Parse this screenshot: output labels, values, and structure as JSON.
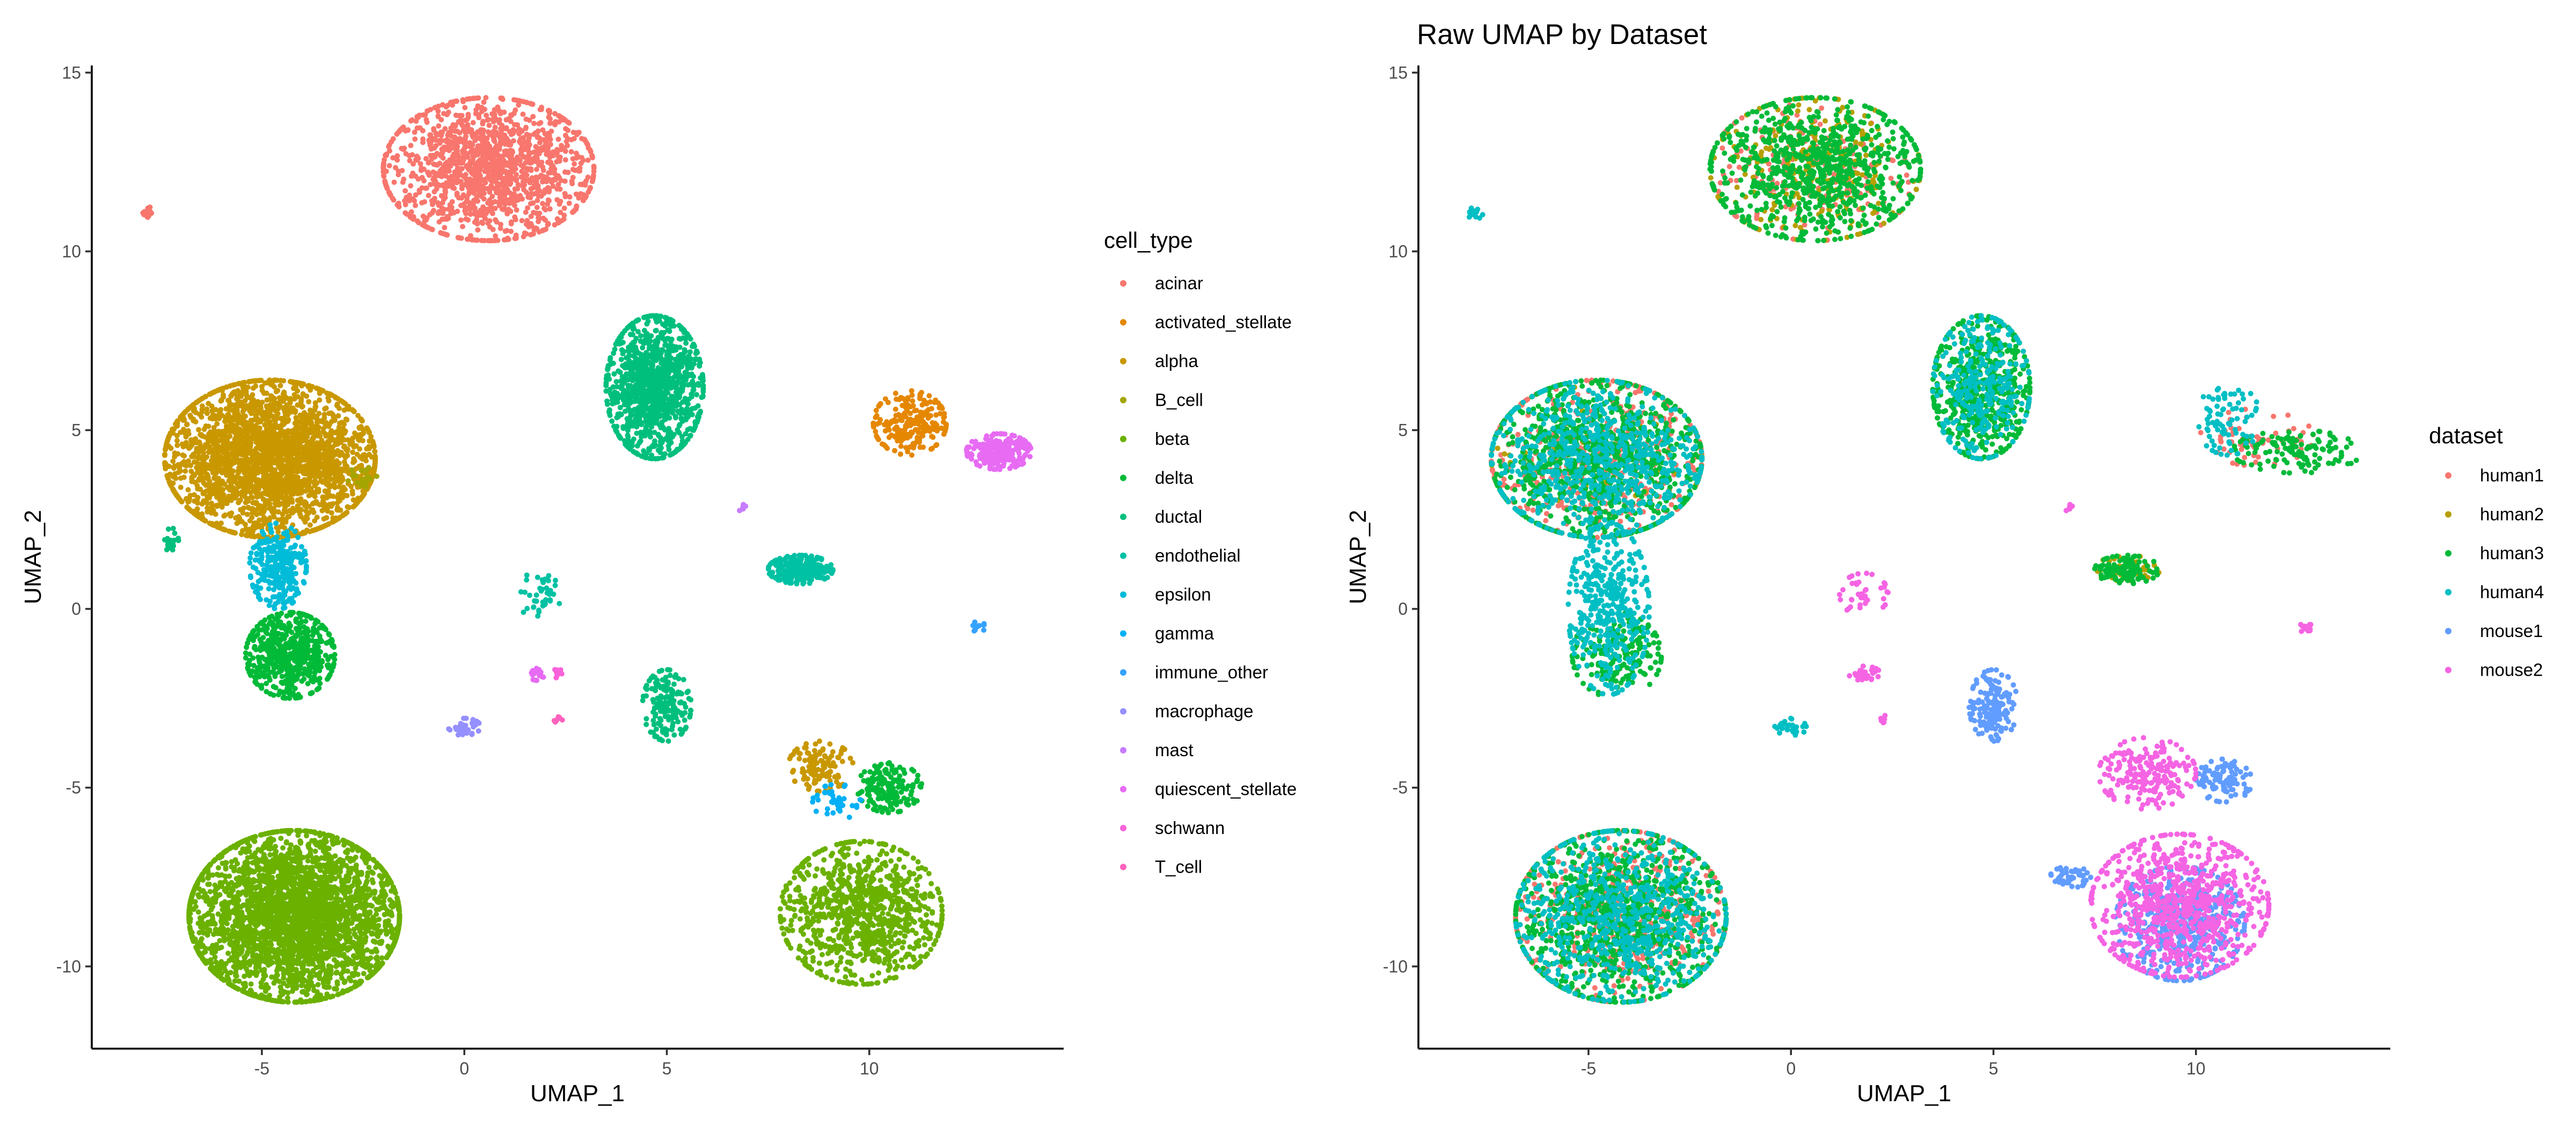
{
  "chart_data": [
    {
      "type": "scatter",
      "title": "",
      "xlabel": "UMAP_1",
      "ylabel": "UMAP_2",
      "xlim": [
        -9.2,
        14.8
      ],
      "ylim": [
        -12.3,
        15.2
      ],
      "xticks": [
        -5,
        0,
        5,
        10
      ],
      "yticks": [
        -10,
        -5,
        0,
        5,
        10,
        15
      ],
      "grid": false,
      "legend": {
        "title": "cell_type",
        "position": "right"
      },
      "series": [
        {
          "name": "acinar",
          "color": "#F8766D",
          "clusters": [
            {
              "cx": 0.6,
              "cy": 12.3,
              "sx": 1.3,
              "sy": 1.0,
              "n": 1400
            },
            {
              "cx": -7.8,
              "cy": 11.1,
              "sx": 0.1,
              "sy": 0.1,
              "n": 15
            }
          ]
        },
        {
          "name": "activated_stellate",
          "color": "#E58700",
          "clusters": [
            {
              "cx": 11.0,
              "cy": 5.2,
              "sx": 0.45,
              "sy": 0.45,
              "n": 220
            }
          ]
        },
        {
          "name": "alpha",
          "color": "#C99800",
          "clusters": [
            {
              "cx": -4.8,
              "cy": 4.2,
              "sx": 1.3,
              "sy": 1.1,
              "n": 2600
            },
            {
              "cx": 8.8,
              "cy": -4.4,
              "sx": 0.4,
              "sy": 0.35,
              "n": 120
            }
          ]
        },
        {
          "name": "B_cell",
          "color": "#A3A500",
          "clusters": [
            {
              "cx": -2.5,
              "cy": 3.7,
              "sx": 0.2,
              "sy": 0.15,
              "n": 20
            }
          ]
        },
        {
          "name": "beta",
          "color": "#6BB100",
          "clusters": [
            {
              "cx": -4.2,
              "cy": -8.6,
              "sx": 1.3,
              "sy": 1.2,
              "n": 3000
            },
            {
              "cx": 9.8,
              "cy": -8.5,
              "sx": 1.0,
              "sy": 1.0,
              "n": 900
            }
          ]
        },
        {
          "name": "delta",
          "color": "#00BA38",
          "clusters": [
            {
              "cx": -4.3,
              "cy": -1.3,
              "sx": 0.55,
              "sy": 0.6,
              "n": 600
            },
            {
              "cx": 10.5,
              "cy": -5.0,
              "sx": 0.4,
              "sy": 0.35,
              "n": 160
            }
          ]
        },
        {
          "name": "ductal",
          "color": "#00BF7D",
          "clusters": [
            {
              "cx": 4.7,
              "cy": 6.2,
              "sx": 0.6,
              "sy": 1.0,
              "n": 1100
            },
            {
              "cx": 5.0,
              "cy": -2.7,
              "sx": 0.3,
              "sy": 0.5,
              "n": 160
            },
            {
              "cx": -7.2,
              "cy": 1.9,
              "sx": 0.1,
              "sy": 0.2,
              "n": 20
            }
          ]
        },
        {
          "name": "endothelial",
          "color": "#00C1A3",
          "clusters": [
            {
              "cx": 8.3,
              "cy": 1.1,
              "sx": 0.4,
              "sy": 0.2,
              "n": 240
            },
            {
              "cx": 1.8,
              "cy": 0.4,
              "sx": 0.3,
              "sy": 0.3,
              "n": 40
            }
          ]
        },
        {
          "name": "epsilon",
          "color": "#00BCD8",
          "clusters": [
            {
              "cx": -4.6,
              "cy": 1.2,
              "sx": 0.35,
              "sy": 0.6,
              "n": 260
            }
          ]
        },
        {
          "name": "gamma",
          "color": "#00B0F6",
          "clusters": [
            {
              "cx": 9.2,
              "cy": -5.4,
              "sx": 0.3,
              "sy": 0.25,
              "n": 40
            }
          ]
        },
        {
          "name": "immune_other",
          "color": "#35A2FF",
          "clusters": [
            {
              "cx": 12.7,
              "cy": -0.5,
              "sx": 0.08,
              "sy": 0.08,
              "n": 12
            }
          ]
        },
        {
          "name": "macrophage",
          "color": "#9590FF",
          "clusters": [
            {
              "cx": 0.0,
              "cy": -3.3,
              "sx": 0.2,
              "sy": 0.12,
              "n": 40
            }
          ]
        },
        {
          "name": "mast",
          "color": "#C77CFF",
          "clusters": [
            {
              "cx": 6.9,
              "cy": 2.8,
              "sx": 0.06,
              "sy": 0.06,
              "n": 8
            }
          ]
        },
        {
          "name": "quiescent_stellate",
          "color": "#E76BF3",
          "clusters": [
            {
              "cx": 13.2,
              "cy": 4.4,
              "sx": 0.4,
              "sy": 0.25,
              "n": 230
            },
            {
              "cx": 1.8,
              "cy": -1.8,
              "sx": 0.12,
              "sy": 0.1,
              "n": 25
            }
          ]
        },
        {
          "name": "schwann",
          "color": "#FA62DB",
          "clusters": [
            {
              "cx": 2.3,
              "cy": -1.8,
              "sx": 0.08,
              "sy": 0.08,
              "n": 10
            }
          ]
        },
        {
          "name": "T_cell",
          "color": "#FF62BC",
          "clusters": [
            {
              "cx": 2.3,
              "cy": -3.1,
              "sx": 0.06,
              "sy": 0.06,
              "n": 8
            }
          ]
        }
      ]
    },
    {
      "type": "scatter",
      "title": "Raw UMAP by Dataset",
      "xlabel": "UMAP_1",
      "ylabel": "UMAP_2",
      "xlim": [
        -9.2,
        14.8
      ],
      "ylim": [
        -12.3,
        15.2
      ],
      "xticks": [
        -5,
        0,
        5,
        10
      ],
      "yticks": [
        -10,
        -5,
        0,
        5,
        10,
        15
      ],
      "grid": false,
      "legend": {
        "title": "dataset",
        "position": "right"
      },
      "series": [
        {
          "name": "human1",
          "color": "#F8766D",
          "clusters": [
            {
              "cx": -4.8,
              "cy": 4.2,
              "sx": 1.3,
              "sy": 1.1,
              "n": 450
            },
            {
              "cx": -4.2,
              "cy": -8.6,
              "sx": 1.3,
              "sy": 1.2,
              "n": 450
            },
            {
              "cx": 0.6,
              "cy": 12.3,
              "sx": 1.3,
              "sy": 1.0,
              "n": 180
            },
            {
              "cx": 11.5,
              "cy": 4.8,
              "sx": 0.7,
              "sy": 0.4,
              "n": 60
            }
          ]
        },
        {
          "name": "human2",
          "color": "#B79F00",
          "clusters": [
            {
              "cx": -4.8,
              "cy": 4.2,
              "sx": 1.3,
              "sy": 1.1,
              "n": 450
            },
            {
              "cx": -4.2,
              "cy": -8.6,
              "sx": 1.3,
              "sy": 1.2,
              "n": 450
            },
            {
              "cx": 0.6,
              "cy": 12.3,
              "sx": 1.3,
              "sy": 1.0,
              "n": 250
            },
            {
              "cx": 4.7,
              "cy": 6.2,
              "sx": 0.6,
              "sy": 1.0,
              "n": 200
            },
            {
              "cx": 8.3,
              "cy": 1.1,
              "sx": 0.4,
              "sy": 0.2,
              "n": 50
            }
          ]
        },
        {
          "name": "human3",
          "color": "#00BA38",
          "clusters": [
            {
              "cx": -4.8,
              "cy": 4.2,
              "sx": 1.3,
              "sy": 1.1,
              "n": 900
            },
            {
              "cx": -4.2,
              "cy": -8.6,
              "sx": 1.3,
              "sy": 1.2,
              "n": 900
            },
            {
              "cx": 0.6,
              "cy": 12.3,
              "sx": 1.3,
              "sy": 1.0,
              "n": 800
            },
            {
              "cx": 4.7,
              "cy": 6.2,
              "sx": 0.6,
              "sy": 1.0,
              "n": 500
            },
            {
              "cx": 8.3,
              "cy": 1.1,
              "sx": 0.4,
              "sy": 0.2,
              "n": 120
            },
            {
              "cx": 12.5,
              "cy": 4.4,
              "sx": 0.8,
              "sy": 0.3,
              "n": 120
            },
            {
              "cx": -4.3,
              "cy": -1.3,
              "sx": 0.55,
              "sy": 0.6,
              "n": 200
            }
          ]
        },
        {
          "name": "human4",
          "color": "#00BFC4",
          "clusters": [
            {
              "cx": -4.8,
              "cy": 4.2,
              "sx": 1.3,
              "sy": 1.1,
              "n": 700
            },
            {
              "cx": -4.2,
              "cy": -8.6,
              "sx": 1.3,
              "sy": 1.2,
              "n": 700
            },
            {
              "cx": 4.7,
              "cy": 6.2,
              "sx": 0.6,
              "sy": 1.0,
              "n": 300
            },
            {
              "cx": -4.5,
              "cy": 0.0,
              "sx": 0.5,
              "sy": 1.2,
              "n": 400
            },
            {
              "cx": 10.8,
              "cy": 5.3,
              "sx": 0.4,
              "sy": 0.5,
              "n": 80
            },
            {
              "cx": 0.0,
              "cy": -3.3,
              "sx": 0.2,
              "sy": 0.12,
              "n": 30
            },
            {
              "cx": -7.8,
              "cy": 11.1,
              "sx": 0.1,
              "sy": 0.1,
              "n": 15
            }
          ]
        },
        {
          "name": "mouse1",
          "color": "#619CFF",
          "clusters": [
            {
              "cx": 9.6,
              "cy": -8.8,
              "sx": 0.8,
              "sy": 0.8,
              "n": 500
            },
            {
              "cx": 5.0,
              "cy": -2.7,
              "sx": 0.3,
              "sy": 0.5,
              "n": 160
            },
            {
              "cx": 10.7,
              "cy": -4.8,
              "sx": 0.35,
              "sy": 0.3,
              "n": 100
            },
            {
              "cx": 6.9,
              "cy": -7.5,
              "sx": 0.25,
              "sy": 0.15,
              "n": 50
            }
          ]
        },
        {
          "name": "mouse2",
          "color": "#F564E3",
          "clusters": [
            {
              "cx": 9.6,
              "cy": -8.3,
              "sx": 1.1,
              "sy": 1.0,
              "n": 800
            },
            {
              "cx": 8.8,
              "cy": -4.6,
              "sx": 0.6,
              "sy": 0.5,
              "n": 200
            },
            {
              "cx": 1.8,
              "cy": 0.4,
              "sx": 0.3,
              "sy": 0.3,
              "n": 40
            },
            {
              "cx": 1.8,
              "cy": -1.8,
              "sx": 0.2,
              "sy": 0.1,
              "n": 30
            },
            {
              "cx": 6.9,
              "cy": 2.8,
              "sx": 0.06,
              "sy": 0.06,
              "n": 8
            },
            {
              "cx": 12.7,
              "cy": -0.5,
              "sx": 0.08,
              "sy": 0.08,
              "n": 12
            },
            {
              "cx": 2.3,
              "cy": -3.1,
              "sx": 0.06,
              "sy": 0.06,
              "n": 8
            }
          ]
        }
      ]
    }
  ]
}
